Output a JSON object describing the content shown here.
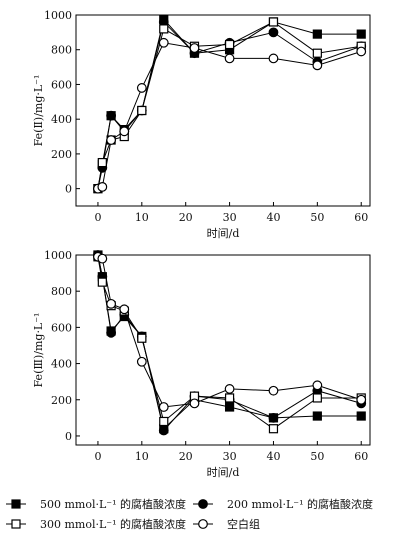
{
  "chart_data": [
    {
      "type": "line",
      "xlabel": "时间/d",
      "ylabel": "Fe(Ⅱ)/mg·L⁻¹",
      "xlim": [
        -5,
        62
      ],
      "ylim": [
        -100,
        1000
      ],
      "xticks": [
        0,
        10,
        20,
        30,
        40,
        50,
        60
      ],
      "yticks": [
        0,
        200,
        400,
        600,
        800,
        1000
      ],
      "grid": false,
      "x": [
        0,
        1,
        3,
        6,
        10,
        15,
        22,
        30,
        40,
        50,
        60
      ],
      "series": [
        {
          "name": "500 mmol·L⁻¹ 的腐植酸浓度",
          "marker": "filled-square",
          "values": [
            0,
            140,
            420,
            340,
            450,
            975,
            780,
            800,
            960,
            890,
            890
          ]
        },
        {
          "name": "200 mmol·L⁻¹ 的腐植酸浓度",
          "marker": "filled-circle",
          "values": [
            0,
            120,
            420,
            330,
            450,
            960,
            780,
            840,
            900,
            730,
            820
          ]
        },
        {
          "name": "300 mmol·L⁻¹ 的腐植酸浓度",
          "marker": "open-square",
          "values": [
            0,
            150,
            280,
            300,
            450,
            920,
            820,
            830,
            960,
            780,
            820
          ]
        },
        {
          "name": "空白组",
          "marker": "open-circle",
          "values": [
            0,
            10,
            280,
            330,
            580,
            840,
            810,
            750,
            750,
            710,
            790
          ]
        }
      ]
    },
    {
      "type": "line",
      "xlabel": "时间/d",
      "ylabel": "Fe(Ⅲ)/mg·L⁻¹",
      "xlim": [
        -5,
        62
      ],
      "ylim": [
        -50,
        1000
      ],
      "xticks": [
        0,
        10,
        20,
        30,
        40,
        50,
        60
      ],
      "yticks": [
        0,
        200,
        400,
        600,
        800,
        1000
      ],
      "grid": false,
      "x": [
        0,
        1,
        3,
        6,
        10,
        15,
        22,
        30,
        40,
        50,
        60
      ],
      "series": [
        {
          "name": "500 mmol·L⁻¹ 的腐植酸浓度",
          "marker": "filled-square",
          "values": [
            1000,
            880,
            580,
            660,
            550,
            40,
            200,
            160,
            100,
            110,
            110
          ]
        },
        {
          "name": "200 mmol·L⁻¹ 的腐植酸浓度",
          "marker": "filled-circle",
          "values": [
            1000,
            880,
            570,
            670,
            550,
            30,
            220,
            200,
            100,
            250,
            180
          ]
        },
        {
          "name": "300 mmol·L⁻¹ 的腐植酸浓度",
          "marker": "open-square",
          "values": [
            990,
            850,
            720,
            690,
            540,
            80,
            220,
            210,
            40,
            210,
            210
          ]
        },
        {
          "name": "空白组",
          "marker": "open-circle",
          "values": [
            990,
            980,
            730,
            700,
            410,
            160,
            180,
            260,
            250,
            280,
            200
          ]
        }
      ]
    }
  ],
  "legend": {
    "placement": "bottom",
    "items": [
      {
        "label": "500 mmol·L⁻¹ 的腐植酸浓度",
        "marker": "filled-square"
      },
      {
        "label": "200 mmol·L⁻¹ 的腐植酸浓度",
        "marker": "filled-circle"
      },
      {
        "label": "300 mmol·L⁻¹ 的腐植酸浓度",
        "marker": "open-square"
      },
      {
        "label": "空白组",
        "marker": "open-circle"
      }
    ]
  }
}
